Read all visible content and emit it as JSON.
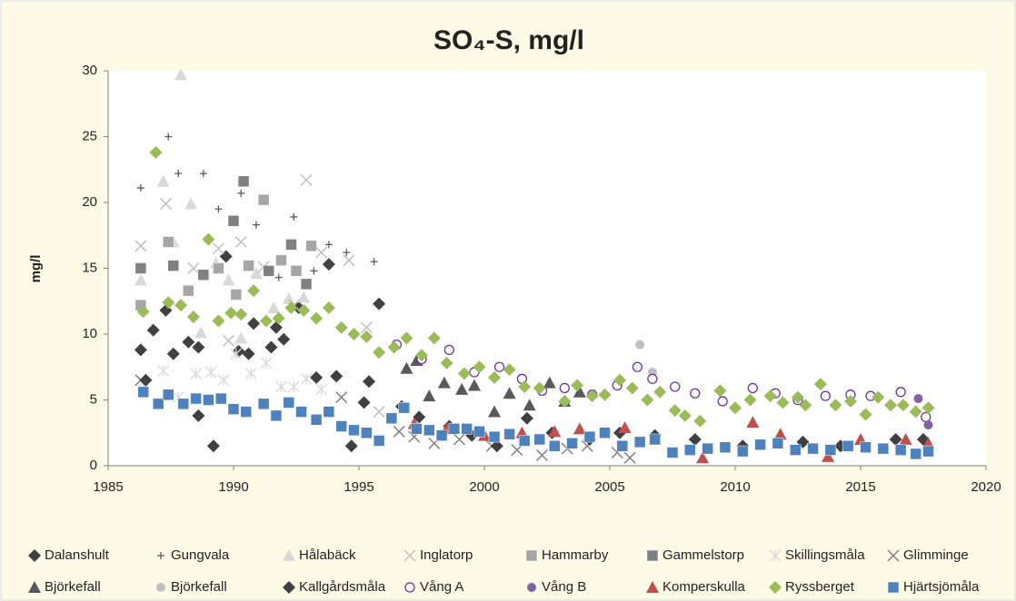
{
  "chart_data": {
    "type": "scatter",
    "title": "SO₄-S, mg/l",
    "y_label": "mg/l",
    "xlim": [
      1985,
      2020
    ],
    "xticks": [
      1985,
      1990,
      1995,
      2000,
      2005,
      2010,
      2015,
      2020
    ],
    "ylim": [
      0,
      30
    ],
    "yticks": [
      0,
      5,
      10,
      15,
      20,
      25,
      30
    ],
    "grid": false,
    "legend": "bottom",
    "series": [
      {
        "name": "Dalanshult",
        "color": "#404040",
        "marker": "diamond",
        "x": [
          1986.3,
          1986.8,
          1987.3,
          1987.6,
          1988.2,
          1988.6,
          1989.2,
          1989.7,
          1990.2,
          1990.8,
          1991.5,
          1992.0,
          1992.6,
          1993.3,
          1994.1,
          1994.7,
          1995.2,
          1995.8
        ],
        "values": [
          8.8,
          10.3,
          11.8,
          8.5,
          9.4,
          3.8,
          1.5,
          15.9,
          8.7,
          10.8,
          9.0,
          9.6,
          12.0,
          6.7,
          6.8,
          1.5,
          4.8,
          12.3
        ]
      },
      {
        "name": "Gungvala",
        "color": "#595959",
        "marker": "plus",
        "x": [
          1986.3,
          1987.4,
          1987.8,
          1988.8,
          1989.4,
          1990.3,
          1990.9,
          1991.8,
          1992.4,
          1993.2,
          1993.8,
          1994.5,
          1995.6
        ],
        "values": [
          21.1,
          25.0,
          22.2,
          22.2,
          19.5,
          20.7,
          18.3,
          14.3,
          18.9,
          14.8,
          16.8,
          16.2,
          15.5
        ]
      },
      {
        "name": "Hålabäck",
        "color": "#d9d9d9",
        "marker": "triangle",
        "x": [
          1986.3,
          1987.2,
          1987.6,
          1987.9,
          1988.3,
          1988.7,
          1989.3,
          1989.8,
          1990.3,
          1990.9,
          1991.6,
          1992.2,
          1992.8
        ],
        "values": [
          14.1,
          21.6,
          17.0,
          29.7,
          19.9,
          10.1,
          15.4,
          14.1,
          9.7,
          14.6,
          12.0,
          12.7,
          12.8
        ]
      },
      {
        "name": "Inglatorp",
        "color": "#bfbfbf",
        "marker": "x",
        "x": [
          1986.3,
          1987.3,
          1988.4,
          1989.4,
          1989.8,
          1990.3,
          1991.2,
          1992.4,
          1992.9,
          1993.5,
          1994.6,
          1995.3,
          1995.8
        ],
        "values": [
          16.7,
          19.9,
          15.0,
          16.5,
          9.5,
          17.0,
          15.1,
          12.2,
          21.7,
          16.2,
          15.6,
          10.5,
          4.1
        ]
      },
      {
        "name": "Hammarby",
        "color": "#a6a6a6",
        "marker": "square",
        "x": [
          1986.3,
          1987.4,
          1988.2,
          1989.4,
          1990.1,
          1990.6,
          1991.2,
          1991.9,
          1992.5,
          1993.1
        ],
        "values": [
          12.2,
          17.0,
          13.3,
          15.0,
          13.0,
          15.2,
          20.2,
          15.6,
          14.8,
          16.7
        ]
      },
      {
        "name": "Gammelstorp",
        "color": "#808080",
        "marker": "square",
        "x": [
          1986.3,
          1987.6,
          1988.8,
          1990.0,
          1990.4,
          1991.4,
          1992.3,
          1992.9
        ],
        "values": [
          15.0,
          15.2,
          14.5,
          18.6,
          21.6,
          14.8,
          16.8,
          13.8
        ]
      },
      {
        "name": "Skillingsmåla",
        "color": "#d9d9d9",
        "marker": "asterisk",
        "x": [
          1986.4,
          1987.2,
          1987.8,
          1988.5,
          1989.1,
          1989.6,
          1990.1,
          1990.7,
          1991.3,
          1991.9,
          1992.4,
          1992.9,
          1993.5
        ],
        "values": [
          6.4,
          7.2,
          5.2,
          7.0,
          7.1,
          6.5,
          8.5,
          7.0,
          7.8,
          6.0,
          6.0,
          6.6,
          5.8
        ]
      },
      {
        "name": "Glimminge",
        "color": "#808080",
        "marker": "x",
        "x": [
          1986.3,
          1994.3,
          1996.6,
          1997.2,
          1998.0,
          1999.0,
          2000.3,
          2001.3,
          2002.3,
          2003.3,
          2004.1,
          2005.3,
          2005.8
        ],
        "values": [
          6.5,
          5.2,
          2.6,
          2.2,
          1.7,
          2.0,
          1.5,
          1.2,
          0.8,
          1.3,
          1.5,
          1.0,
          0.6
        ]
      },
      {
        "name": "Björkefall",
        "color": "#595959",
        "marker": "triangle",
        "x": [
          1996.9,
          1997.3,
          1997.8,
          1998.4,
          1999.1,
          1999.6,
          2000.4,
          2001.0,
          2001.8,
          2002.6,
          2003.2,
          2003.8
        ],
        "values": [
          7.4,
          8.0,
          5.3,
          6.3,
          5.8,
          6.1,
          4.1,
          5.5,
          4.6,
          6.3,
          4.9,
          5.6
        ]
      },
      {
        "name": "Björkefall",
        "color": "#bfbfbf",
        "marker": "circle",
        "x": [
          2006.2,
          2006.7
        ],
        "values": [
          9.2,
          7.1
        ]
      },
      {
        "name": "Kallgårdsmåla",
        "color": "#404040",
        "marker": "diamond",
        "x": [
          1986.5,
          1988.6,
          1990.6,
          1991.7,
          1993.8,
          1995.4,
          1996.7,
          1997.4,
          1998.6,
          1999.5,
          2000.5,
          2001.7,
          2002.7,
          2004.2,
          2005.4,
          2006.8,
          2008.4,
          2010.3,
          2012.7,
          2014.2,
          2016.4,
          2017.5
        ],
        "values": [
          6.5,
          9.0,
          8.5,
          10.5,
          15.3,
          6.4,
          4.5,
          3.7,
          3.0,
          2.3,
          1.5,
          3.6,
          2.5,
          2.0,
          2.5,
          2.3,
          2.0,
          1.5,
          1.8,
          1.5,
          2.0,
          2.0
        ]
      },
      {
        "name": "Vång A",
        "color": "#7030a0",
        "marker": "open-circle",
        "x": [
          1996.5,
          1997.5,
          1998.6,
          1999.6,
          2000.6,
          2001.5,
          2002.3,
          2003.2,
          2004.3,
          2005.3,
          2006.1,
          2006.7,
          2007.6,
          2008.4,
          2009.5,
          2010.7,
          2011.6,
          2012.5,
          2013.6,
          2014.6,
          2015.4,
          2016.6,
          2017.6
        ],
        "values": [
          9.2,
          8.1,
          8.8,
          7.1,
          7.5,
          6.6,
          5.7,
          5.9,
          5.4,
          6.1,
          7.5,
          6.6,
          6.0,
          5.5,
          4.9,
          5.9,
          5.5,
          5.0,
          5.3,
          5.4,
          5.3,
          5.6,
          3.7
        ]
      },
      {
        "name": "Vång B",
        "color": "#8064a2",
        "marker": "circle",
        "x": [
          2017.3,
          2017.7
        ],
        "values": [
          5.1,
          3.1
        ]
      },
      {
        "name": "Komperskulla",
        "color": "#c0504d",
        "marker": "triangle",
        "x": [
          1997.2,
          1998.5,
          2000.0,
          2001.5,
          2002.8,
          2003.8,
          2005.6,
          2006.8,
          2008.7,
          2010.7,
          2011.8,
          2013.7,
          2015.0,
          2016.8,
          2017.7
        ],
        "values": [
          3.2,
          2.8,
          2.3,
          2.5,
          2.6,
          2.8,
          2.9,
          2.0,
          0.6,
          3.3,
          2.4,
          0.7,
          2.0,
          2.0,
          1.7
        ]
      },
      {
        "name": "Ryssberget",
        "color": "#9bbb59",
        "marker": "diamond",
        "x": [
          1986.4,
          1986.9,
          1987.4,
          1987.9,
          1988.4,
          1989.0,
          1989.4,
          1989.9,
          1990.3,
          1990.8,
          1991.3,
          1991.8,
          1992.3,
          1992.8,
          1993.3,
          1993.8,
          1994.3,
          1994.8,
          1995.3,
          1995.8,
          1996.4,
          1996.9,
          1997.5,
          1998.0,
          1998.5,
          1999.2,
          1999.8,
          2000.4,
          2001.0,
          2001.6,
          2002.2,
          2003.2,
          2003.7,
          2004.3,
          2004.8,
          2005.4,
          2005.9,
          2006.5,
          2007.0,
          2007.6,
          2008.0,
          2008.6,
          2009.4,
          2010.0,
          2010.6,
          2011.4,
          2011.9,
          2012.5,
          2012.8,
          2013.4,
          2014.0,
          2014.6,
          2015.2,
          2015.7,
          2016.2,
          2016.7,
          2017.2,
          2017.7
        ],
        "values": [
          11.7,
          23.8,
          12.4,
          12.2,
          11.3,
          17.2,
          11.0,
          11.6,
          11.5,
          13.3,
          11.0,
          11.2,
          12.0,
          11.8,
          11.2,
          12.0,
          10.5,
          10.0,
          9.8,
          8.6,
          9.0,
          9.7,
          8.4,
          9.7,
          7.8,
          7.0,
          7.5,
          6.7,
          7.3,
          6.0,
          5.9,
          4.9,
          6.1,
          5.3,
          5.4,
          6.5,
          5.9,
          5.0,
          5.6,
          4.2,
          3.8,
          3.4,
          5.7,
          4.4,
          5.0,
          5.3,
          4.8,
          5.2,
          4.6,
          6.2,
          4.6,
          4.9,
          3.9,
          5.2,
          4.6,
          4.6,
          4.1,
          4.4
        ]
      },
      {
        "name": "Hjärtsjömåla",
        "color": "#4f81bd",
        "marker": "square",
        "x": [
          1986.4,
          1987.0,
          1987.4,
          1988.0,
          1988.5,
          1989.0,
          1989.5,
          1990.0,
          1990.5,
          1991.2,
          1991.7,
          1992.2,
          1992.7,
          1993.3,
          1993.8,
          1994.3,
          1994.8,
          1995.3,
          1995.8,
          1996.3,
          1996.8,
          1997.3,
          1997.8,
          1998.3,
          1998.8,
          1999.3,
          1999.8,
          2000.4,
          2001.0,
          2001.6,
          2002.2,
          2002.8,
          2003.5,
          2004.2,
          2004.8,
          2005.5,
          2006.2,
          2006.8,
          2007.5,
          2008.2,
          2008.9,
          2009.6,
          2010.3,
          2011.0,
          2011.7,
          2012.4,
          2013.1,
          2013.8,
          2014.5,
          2015.2,
          2015.9,
          2016.6,
          2017.2,
          2017.7
        ],
        "values": [
          5.6,
          4.7,
          5.4,
          4.7,
          5.1,
          5.0,
          5.1,
          4.3,
          4.1,
          4.7,
          3.8,
          4.8,
          4.1,
          3.5,
          4.1,
          3.0,
          2.7,
          2.5,
          1.9,
          3.6,
          4.4,
          2.8,
          2.7,
          2.3,
          2.8,
          2.8,
          2.6,
          2.2,
          2.4,
          1.9,
          2.0,
          1.5,
          1.7,
          2.2,
          2.5,
          1.5,
          1.8,
          2.0,
          1.0,
          1.2,
          1.3,
          1.4,
          1.1,
          1.6,
          1.7,
          1.2,
          1.3,
          1.2,
          1.5,
          1.4,
          1.3,
          1.2,
          0.9,
          1.1
        ]
      }
    ]
  }
}
